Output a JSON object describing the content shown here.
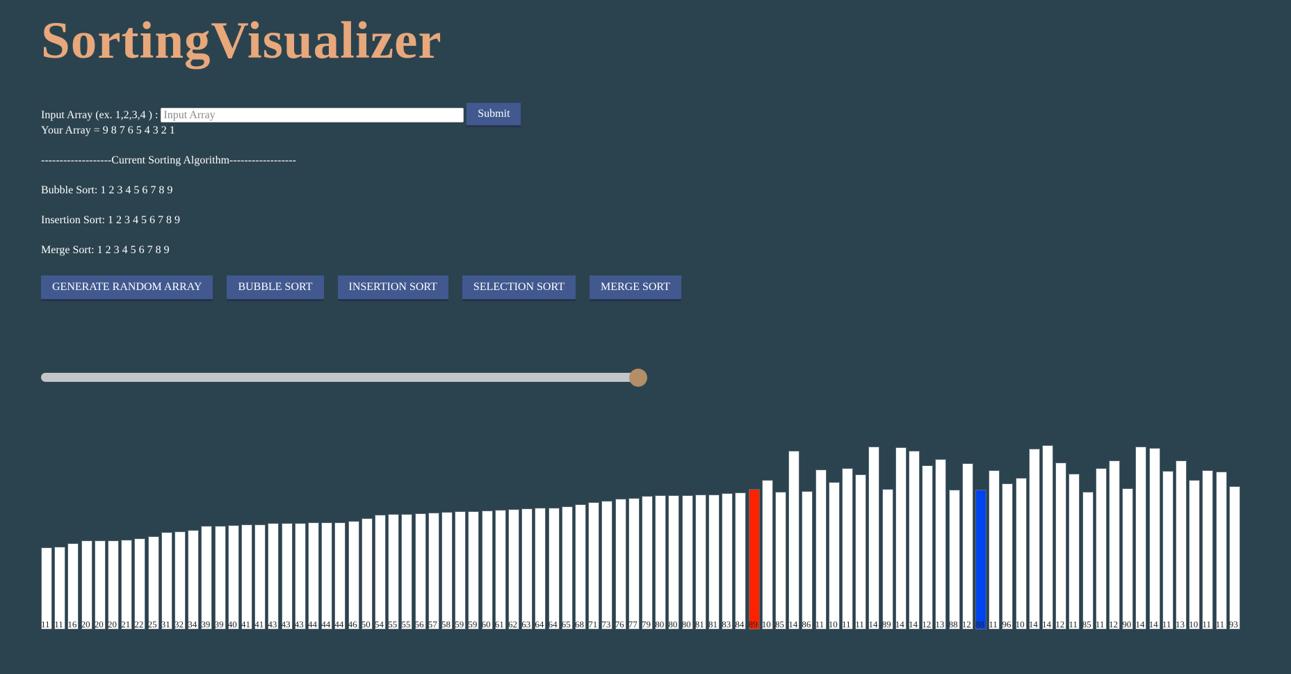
{
  "title": "SortingVisualizer",
  "input": {
    "label": "Input Array (ex. 1,2,3,4 ) :",
    "placeholder": "Input Array",
    "value": "",
    "submit_label": "Submit"
  },
  "your_array": "Your Array = 9 8 7 6 5 4 3 2 1",
  "current_algorithm": "-------------------Current Sorting Algorithm------------------",
  "results": {
    "bubble": "Bubble Sort: 1 2 3 4 5 6 7 8 9",
    "insertion": "Insertion Sort: 1 2 3 4 5 6 7 8 9",
    "merge": "Merge Sort: 1 2 3 4 5 6 7 8 9"
  },
  "buttons": {
    "generate": "GENERATE RANDOM ARRAY",
    "bubble": "BUBBLE SORT",
    "insertion": "INSERTION SORT",
    "selection": "SELECTION SORT",
    "merge": "MERGE SORT"
  },
  "slider": {
    "value": 100,
    "min": 0,
    "max": 100
  },
  "colors": {
    "background": "#2b434f",
    "title": "#e8a87c",
    "bar": "#ffffff",
    "compare": "#ff2200",
    "current": "#0044ee"
  },
  "bars": [
    {
      "value": 110,
      "label": "11"
    },
    {
      "value": 111,
      "label": "11"
    },
    {
      "value": 116,
      "label": "16"
    },
    {
      "value": 120,
      "label": "20"
    },
    {
      "value": 120,
      "label": "20"
    },
    {
      "value": 120,
      "label": "20"
    },
    {
      "value": 121,
      "label": "21"
    },
    {
      "value": 122,
      "label": "22"
    },
    {
      "value": 125,
      "label": "25"
    },
    {
      "value": 131,
      "label": "31"
    },
    {
      "value": 132,
      "label": "32"
    },
    {
      "value": 134,
      "label": "34"
    },
    {
      "value": 139,
      "label": "39"
    },
    {
      "value": 139,
      "label": "39"
    },
    {
      "value": 140,
      "label": "40"
    },
    {
      "value": 141,
      "label": "41"
    },
    {
      "value": 141,
      "label": "41"
    },
    {
      "value": 143,
      "label": "43"
    },
    {
      "value": 143,
      "label": "43"
    },
    {
      "value": 143,
      "label": "43"
    },
    {
      "value": 144,
      "label": "44"
    },
    {
      "value": 144,
      "label": "44"
    },
    {
      "value": 144,
      "label": "44"
    },
    {
      "value": 146,
      "label": "46"
    },
    {
      "value": 150,
      "label": "50"
    },
    {
      "value": 154,
      "label": "54"
    },
    {
      "value": 155,
      "label": "55"
    },
    {
      "value": 155,
      "label": "55"
    },
    {
      "value": 156,
      "label": "56"
    },
    {
      "value": 157,
      "label": "57"
    },
    {
      "value": 158,
      "label": "58"
    },
    {
      "value": 159,
      "label": "59"
    },
    {
      "value": 159,
      "label": "59"
    },
    {
      "value": 160,
      "label": "60"
    },
    {
      "value": 161,
      "label": "61"
    },
    {
      "value": 162,
      "label": "62"
    },
    {
      "value": 163,
      "label": "63"
    },
    {
      "value": 164,
      "label": "64"
    },
    {
      "value": 164,
      "label": "64"
    },
    {
      "value": 165,
      "label": "65"
    },
    {
      "value": 168,
      "label": "68"
    },
    {
      "value": 171,
      "label": "71"
    },
    {
      "value": 173,
      "label": "73"
    },
    {
      "value": 176,
      "label": "76"
    },
    {
      "value": 177,
      "label": "77"
    },
    {
      "value": 179,
      "label": "79"
    },
    {
      "value": 180,
      "label": "80"
    },
    {
      "value": 180,
      "label": "80"
    },
    {
      "value": 180,
      "label": "80"
    },
    {
      "value": 181,
      "label": "81"
    },
    {
      "value": 181,
      "label": "81"
    },
    {
      "value": 183,
      "label": "83"
    },
    {
      "value": 184,
      "label": "84"
    },
    {
      "value": 189,
      "label": "89",
      "state": "compare"
    },
    {
      "value": 201,
      "label": "10"
    },
    {
      "value": 185,
      "label": "85"
    },
    {
      "value": 240,
      "label": "14"
    },
    {
      "value": 186,
      "label": "86"
    },
    {
      "value": 215,
      "label": "11"
    },
    {
      "value": 198,
      "label": "10"
    },
    {
      "value": 217,
      "label": "11"
    },
    {
      "value": 208,
      "label": "11"
    },
    {
      "value": 246,
      "label": "14"
    },
    {
      "value": 189,
      "label": "89"
    },
    {
      "value": 245,
      "label": "14"
    },
    {
      "value": 240,
      "label": "14"
    },
    {
      "value": 221,
      "label": "12"
    },
    {
      "value": 229,
      "label": "13"
    },
    {
      "value": 188,
      "label": "88"
    },
    {
      "value": 223,
      "label": "12"
    },
    {
      "value": 188,
      "label": "88",
      "state": "current"
    },
    {
      "value": 214,
      "label": "11"
    },
    {
      "value": 196,
      "label": "96"
    },
    {
      "value": 204,
      "label": "10"
    },
    {
      "value": 243,
      "label": "14"
    },
    {
      "value": 248,
      "label": "14"
    },
    {
      "value": 224,
      "label": "12"
    },
    {
      "value": 209,
      "label": "11"
    },
    {
      "value": 185,
      "label": "85"
    },
    {
      "value": 217,
      "label": "11"
    },
    {
      "value": 227,
      "label": "12"
    },
    {
      "value": 190,
      "label": "90"
    },
    {
      "value": 246,
      "label": "14"
    },
    {
      "value": 244,
      "label": "14"
    },
    {
      "value": 213,
      "label": "11"
    },
    {
      "value": 227,
      "label": "13"
    },
    {
      "value": 201,
      "label": "10"
    },
    {
      "value": 214,
      "label": "11"
    },
    {
      "value": 212,
      "label": "11"
    },
    {
      "value": 193,
      "label": "93"
    }
  ]
}
